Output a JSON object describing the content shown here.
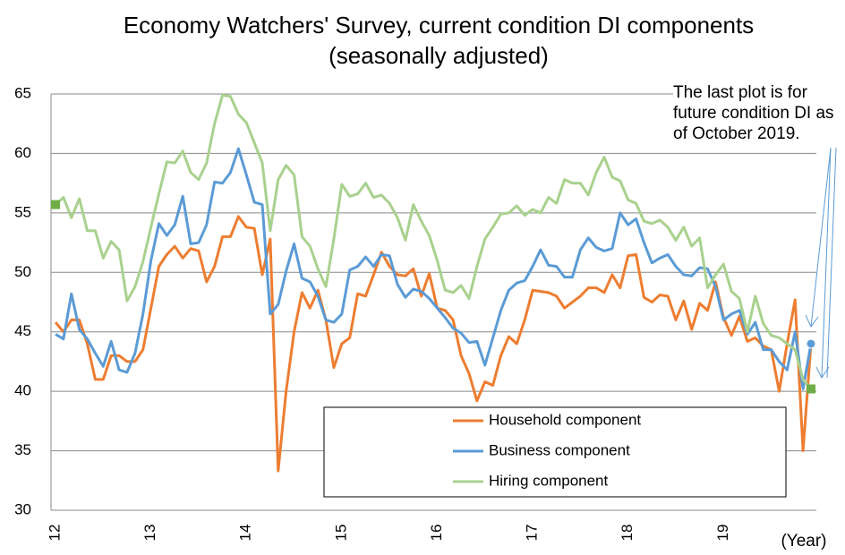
{
  "chart_data": {
    "type": "line",
    "title": "Economy Watchers' Survey, current condition DI components",
    "subtitle": "(seasonally adjusted)",
    "x_label": "(Year)",
    "annotation": "The last plot is for future condition DI as of October 2019.",
    "categories": [
      "12",
      null,
      null,
      null,
      null,
      null,
      null,
      null,
      null,
      null,
      null,
      null,
      "13",
      null,
      null,
      null,
      null,
      null,
      null,
      null,
      null,
      null,
      null,
      null,
      "14",
      null,
      null,
      null,
      null,
      null,
      null,
      null,
      null,
      null,
      null,
      null,
      "15",
      null,
      null,
      null,
      null,
      null,
      null,
      null,
      null,
      null,
      null,
      null,
      "16",
      null,
      null,
      null,
      null,
      null,
      null,
      null,
      null,
      null,
      null,
      null,
      "17",
      null,
      null,
      null,
      null,
      null,
      null,
      null,
      null,
      null,
      null,
      null,
      "18",
      null,
      null,
      null,
      null,
      null,
      null,
      null,
      null,
      null,
      null,
      null,
      "19",
      null,
      null,
      null,
      null,
      null,
      null,
      null,
      null,
      null,
      null,
      null
    ],
    "series": [
      {
        "name": "Household component",
        "color": "#ed7d31",
        "end_marker": "circle",
        "values": [
          45.8,
          45,
          46,
          46,
          44,
          41,
          41,
          43,
          43,
          42.5,
          42.5,
          43.5,
          47,
          50.5,
          51.5,
          52.2,
          51.2,
          52,
          51.8,
          49.2,
          50.5,
          53,
          53,
          54.7,
          53.8,
          53.7,
          49.8,
          52.8,
          33.3,
          40,
          45,
          48.3,
          47,
          48.5,
          46,
          42,
          44,
          44.5,
          48.2,
          48,
          49.8,
          51.7,
          50.5,
          49.8,
          49.7,
          50.3,
          48,
          49.9,
          47,
          46.8,
          46,
          43,
          41.5,
          39.2,
          40.8,
          40.5,
          43,
          44.6,
          44,
          46,
          48.5,
          48.4,
          48.3,
          48,
          47,
          47.5,
          48,
          48.7,
          48.7,
          48.3,
          49.8,
          48.7,
          51.4,
          51.5,
          47.9,
          47.5,
          48.1,
          48,
          46,
          47.6,
          45.2,
          47.4,
          46.8,
          49.2,
          46.2,
          44.7,
          46.3,
          44.2,
          44.5,
          43.8,
          43.5,
          40,
          44,
          47.7,
          35,
          44
        ]
      },
      {
        "name": "Business component",
        "color": "#5b9bd5",
        "end_marker": "circle",
        "values": [
          44.8,
          44.4,
          48.2,
          45.2,
          44.4,
          43.2,
          42.1,
          44.2,
          41.8,
          41.6,
          43.2,
          46.5,
          51,
          54.1,
          53.1,
          54,
          56.4,
          52.4,
          52.5,
          54,
          57.6,
          57.5,
          58.4,
          60.4,
          58.2,
          55.9,
          55.7,
          46.5,
          47.3,
          50.1,
          52.4,
          49.5,
          49.2,
          48,
          46,
          45.8,
          46.5,
          50.2,
          50.5,
          51.3,
          50.5,
          51.5,
          51.4,
          49,
          47.9,
          48.6,
          48.4,
          47.8,
          47,
          46.2,
          45.3,
          44.9,
          44.1,
          44.2,
          42.2,
          44.5,
          46.8,
          48.5,
          49.1,
          49.3,
          50.5,
          51.9,
          50.6,
          50.5,
          49.6,
          49.6,
          51.9,
          52.9,
          52.1,
          51.8,
          52,
          55,
          54,
          54.5,
          52.5,
          50.8,
          51.2,
          51.5,
          50.5,
          49.8,
          49.7,
          50.4,
          50.3,
          48.8,
          46,
          46.5,
          46.8,
          44.8,
          45.8,
          43.5,
          43.5,
          42.5,
          41.8,
          45,
          40.2,
          44
        ]
      },
      {
        "name": "Hiring component",
        "color": "#a9d18e",
        "end_marker": "square",
        "start_marker": "square",
        "marker_color": "#70ad47",
        "values": [
          55.7,
          56.3,
          54.6,
          56.2,
          53.5,
          53.5,
          51.2,
          52.6,
          51.9,
          47.6,
          48.8,
          50.9,
          53.8,
          56.6,
          59.3,
          59.2,
          60.2,
          58.4,
          57.8,
          59.2,
          62.5,
          64.9,
          64.8,
          63.3,
          62.6,
          60.9,
          59.2,
          53.5,
          57.8,
          59,
          58.2,
          53,
          52.2,
          50.3,
          48.8,
          52.8,
          57.4,
          56.4,
          56.6,
          57.5,
          56.3,
          56.5,
          55.8,
          54.6,
          52.7,
          55.7,
          54.3,
          53.1,
          51,
          48.5,
          48.3,
          48.9,
          47.8,
          50.5,
          52.8,
          53.8,
          54.9,
          55,
          55.6,
          54.8,
          55.3,
          55,
          56.3,
          55.8,
          57.8,
          57.5,
          57.5,
          56.5,
          58.4,
          59.7,
          58,
          57.7,
          56.1,
          55.8,
          54.3,
          54.1,
          54.4,
          53.8,
          52.7,
          53.8,
          52.2,
          52.9,
          48.7,
          49.8,
          50.7,
          48.4,
          47.8,
          45,
          48,
          45.7,
          44.7,
          44.5,
          44,
          43.5,
          41,
          40.2
        ]
      }
    ],
    "ylim": [
      30,
      65
    ],
    "yticks": [
      30,
      35,
      40,
      45,
      50,
      55,
      60,
      65
    ],
    "grid": true
  }
}
